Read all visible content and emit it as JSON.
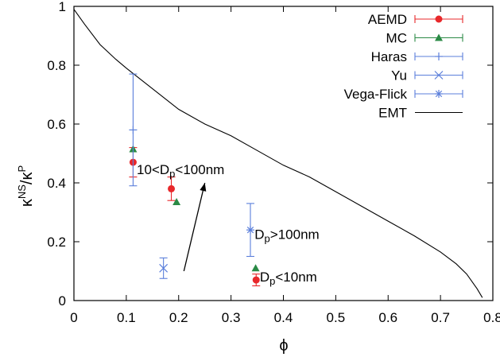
{
  "chart_data": {
    "type": "scatter",
    "title": "",
    "xlabel": "ϕ",
    "ylabel": {
      "base": "κ",
      "sup1": "NS",
      "sep": "/κ",
      "sup2": "P"
    },
    "xlim": [
      0,
      0.8
    ],
    "ylim": [
      0,
      1
    ],
    "xticks": [
      0,
      0.1,
      0.2,
      0.3,
      0.4,
      0.5,
      0.6,
      0.7,
      0.8
    ],
    "yticks": [
      0,
      0.2,
      0.4,
      0.6,
      0.8,
      1
    ],
    "xtick_labels": [
      "0",
      "0.1",
      "0.2",
      "0.3",
      "0.4",
      "0.5",
      "0.6",
      "0.7",
      "0.8"
    ],
    "ytick_labels": [
      "0",
      "0.2",
      "0.4",
      "0.6",
      "0.8",
      "1"
    ],
    "grid": false,
    "legend_position": "top-right",
    "series": [
      {
        "name": "AEMD",
        "color": "#e8282b",
        "marker": "circle",
        "points": [
          {
            "x": 0.113,
            "y": 0.47,
            "ylo": 0.42,
            "yhi": 0.52
          },
          {
            "x": 0.186,
            "y": 0.38,
            "ylo": 0.34,
            "yhi": 0.42
          },
          {
            "x": 0.348,
            "y": 0.07,
            "ylo": 0.05,
            "yhi": 0.09
          }
        ]
      },
      {
        "name": "MC",
        "color": "#2a8a45",
        "marker": "triangle",
        "points": [
          {
            "x": 0.113,
            "y": 0.515
          },
          {
            "x": 0.196,
            "y": 0.335
          },
          {
            "x": 0.347,
            "y": 0.11
          }
        ]
      },
      {
        "name": "Haras",
        "color": "#5b7fdb",
        "marker": "plus",
        "points": [
          {
            "x": 0.113,
            "y": 0.58,
            "ylo": 0.39,
            "yhi": 0.77
          }
        ]
      },
      {
        "name": "Yu",
        "color": "#5b7fdb",
        "marker": "cross",
        "points": [
          {
            "x": 0.171,
            "y": 0.11,
            "ylo": 0.075,
            "yhi": 0.145
          }
        ]
      },
      {
        "name": "Vega-Flick",
        "color": "#5b7fdb",
        "marker": "star",
        "points": [
          {
            "x": 0.337,
            "y": 0.24,
            "ylo": 0.15,
            "yhi": 0.33
          }
        ]
      },
      {
        "name": "EMT",
        "color": "#000000",
        "marker": "line",
        "curve": [
          [
            0.0,
            0.99
          ],
          [
            0.02,
            0.94
          ],
          [
            0.05,
            0.87
          ],
          [
            0.08,
            0.82
          ],
          [
            0.1,
            0.79
          ],
          [
            0.15,
            0.72
          ],
          [
            0.2,
            0.65
          ],
          [
            0.25,
            0.6
          ],
          [
            0.3,
            0.56
          ],
          [
            0.35,
            0.51
          ],
          [
            0.4,
            0.46
          ],
          [
            0.45,
            0.42
          ],
          [
            0.5,
            0.37
          ],
          [
            0.55,
            0.32
          ],
          [
            0.6,
            0.27
          ],
          [
            0.65,
            0.22
          ],
          [
            0.7,
            0.165
          ],
          [
            0.73,
            0.125
          ],
          [
            0.75,
            0.09
          ],
          [
            0.77,
            0.04
          ],
          [
            0.78,
            0.01
          ]
        ]
      }
    ],
    "annotations": [
      {
        "text": "10<D",
        "sub": "p",
        "after": "<100nm",
        "x": 0.12,
        "y": 0.43
      },
      {
        "text": "D",
        "sub": "p",
        "after": ">100nm",
        "x": 0.345,
        "y": 0.21
      },
      {
        "text": "D",
        "sub": "p",
        "after": "<10nm",
        "x": 0.355,
        "y": 0.065
      }
    ],
    "arrow": {
      "from": [
        0.21,
        0.1
      ],
      "to": [
        0.25,
        0.4
      ]
    }
  }
}
